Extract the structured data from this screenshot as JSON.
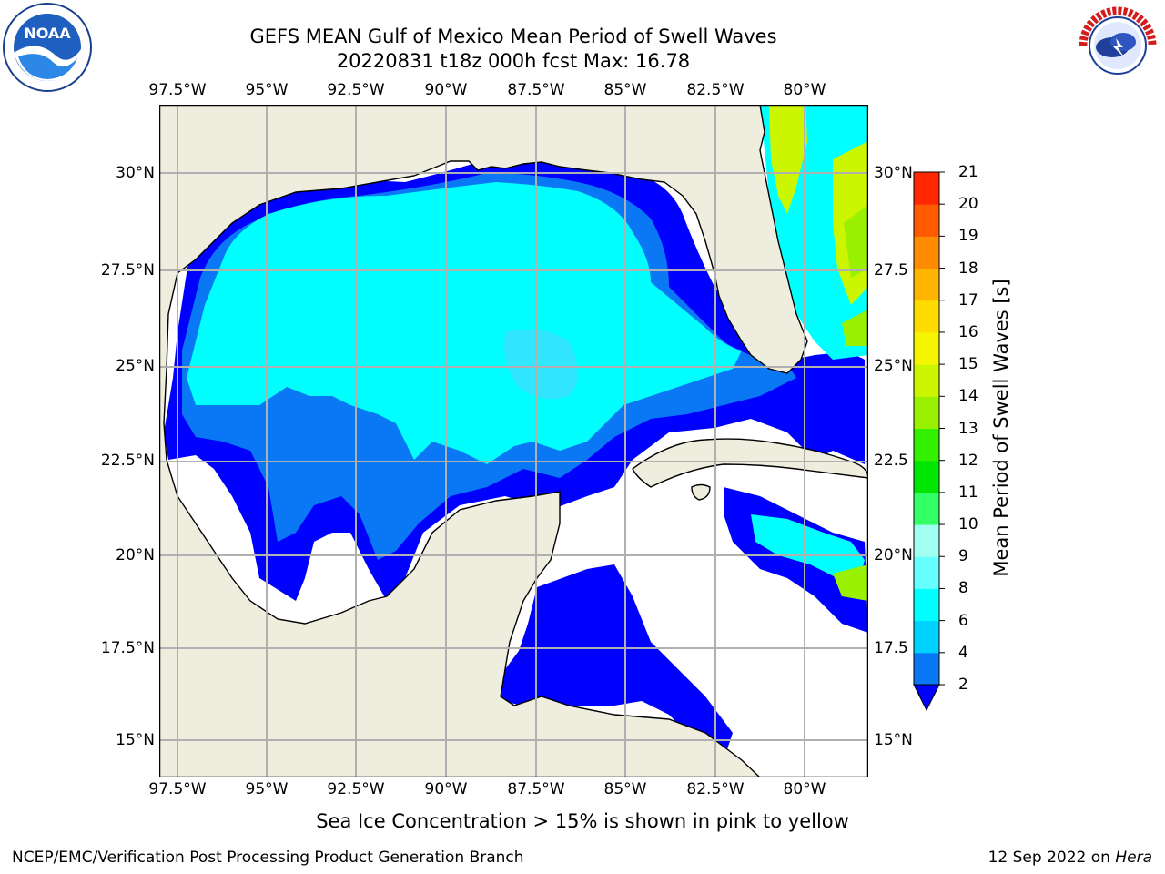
{
  "title": {
    "line1": "GEFS MEAN Gulf of Mexico Mean Period of Swell Waves",
    "line2": "20220831 t18z 000h fcst   Max: 16.78"
  },
  "map": {
    "lon_ticks": [
      "97.5°W",
      "95°W",
      "92.5°W",
      "90°W",
      "87.5°W",
      "85°W",
      "82.5°W",
      "80°W"
    ],
    "lat_ticks_left": [
      "30°N",
      "27.5°N",
      "25°N",
      "22.5°N",
      "20°N",
      "17.5°N",
      "15°N"
    ],
    "lat_ticks_right": [
      "30°N",
      "27.5",
      "25°N",
      "22.5",
      "20°N",
      "17.5",
      "15°N"
    ],
    "land_color": "#efedde",
    "grid_color": "#b0b0b0"
  },
  "colorbar": {
    "title": "Mean Period of Swell Waves [s]",
    "labels": [
      "2",
      "4",
      "6",
      "8",
      "9",
      "10",
      "11",
      "12",
      "13",
      "14",
      "15",
      "16",
      "17",
      "18",
      "19",
      "20",
      "21"
    ],
    "colors": [
      "#0a78f5",
      "#00d2ff",
      "#00ffff",
      "#66ffff",
      "#a0fff0",
      "#33ff66",
      "#00e600",
      "#33ef00",
      "#99f000",
      "#ccf500",
      "#f5f500",
      "#ffdc00",
      "#ffb400",
      "#ff8c00",
      "#ff5a00",
      "#ff2800",
      "#ff0000"
    ],
    "extend_color": "#0000ff"
  },
  "note": "Sea Ice Concentration > 15% is shown in pink to yellow",
  "footer": {
    "left": "NCEP/EMC/Verification Post Processing Product Generation Branch",
    "date": "12 Sep 2022 on ",
    "machine": "Hera"
  },
  "logos": {
    "noaa": "NOAA",
    "nws": "NATIONAL WEATHER SERVICE"
  }
}
